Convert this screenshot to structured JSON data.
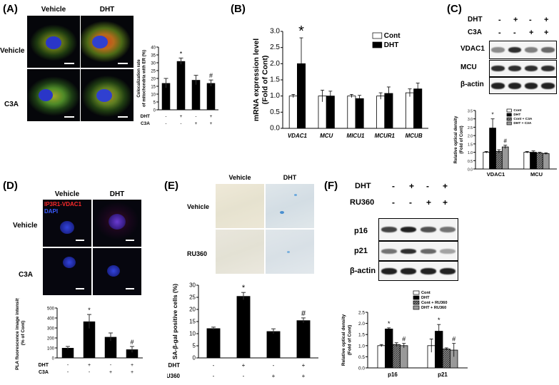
{
  "panels": {
    "A": {
      "label": "(A)",
      "col_headers": [
        "Vehicle",
        "DHT"
      ],
      "row_headers": [
        "Vehicle",
        "C3A"
      ],
      "chart_data": {
        "type": "bar",
        "ylabel": "Colocalization rate of mitochondria with ER (%)",
        "ylabel_lines": [
          "Colocalization rate",
          "of mitochondria with ER (%)"
        ],
        "ylim": [
          0,
          40
        ],
        "yticks": [
          "0",
          "5",
          "10",
          "15",
          "20",
          "25",
          "30",
          "35",
          "40"
        ],
        "conditions": {
          "DHT": [
            "-",
            "+",
            "-",
            "+"
          ],
          "C3A": [
            "-",
            "-",
            "+",
            "+"
          ]
        },
        "values": [
          17,
          31,
          19,
          17
        ],
        "errors": [
          3,
          2,
          3,
          2
        ],
        "colors": [
          "#000000",
          "#000000",
          "#000000",
          "#000000"
        ],
        "annotations": [
          "",
          "*",
          "",
          "#"
        ]
      }
    },
    "B": {
      "label": "(B)",
      "chart_data": {
        "type": "bar",
        "ylabel": "mRNA expression level (Fold of Cont)",
        "ylabel_lines": [
          "mRNA expression level",
          "(Fold of Cont)"
        ],
        "ylim": [
          0,
          3.0
        ],
        "yticks": [
          "0.0",
          "0.5",
          "1.0",
          "1.5",
          "2.0",
          "2.5",
          "3.0"
        ],
        "categories": [
          "VDAC1",
          "MCU",
          "MICU1",
          "MCUR1",
          "MCUB"
        ],
        "series": [
          {
            "name": "Cont",
            "color": "#ffffff",
            "values": [
              1.0,
              1.0,
              1.0,
              1.0,
              1.1
            ],
            "errors": [
              0.05,
              0.18,
              0.05,
              0.1,
              0.12
            ]
          },
          {
            "name": "DHT",
            "color": "#000000",
            "values": [
              2.0,
              1.0,
              0.92,
              1.08,
              1.22
            ],
            "errors": [
              0.8,
              0.15,
              0.1,
              0.2,
              0.18
            ]
          }
        ],
        "annotations": [
          {
            "category": "VDAC1",
            "text": "*"
          }
        ]
      }
    },
    "C": {
      "label": "(C)",
      "conditions": {
        "DHT": [
          "-",
          "+",
          "-",
          "+"
        ],
        "C3A": [
          "-",
          "-",
          "+",
          "+"
        ]
      },
      "blot_labels": [
        "VDAC1",
        "MCU",
        "β-actin"
      ],
      "chart_data": {
        "type": "bar",
        "ylabel": "Relative optical density (Fold of Cont)",
        "ylabel_lines": [
          "Relative optical density",
          "(Fold of Cont)"
        ],
        "ylim": [
          0,
          3.5
        ],
        "yticks": [
          "0.0",
          "0.5",
          "1.0",
          "1.5",
          "2.0",
          "2.5",
          "3.0",
          "3.5"
        ],
        "categories": [
          "VDAC1",
          "MCU"
        ],
        "series": [
          {
            "name": "Cont",
            "fill": "#ffffff",
            "values": [
              1.0,
              1.0
            ],
            "errors": [
              0.05,
              0.05
            ]
          },
          {
            "name": "DHT",
            "fill": "#000000",
            "values": [
              2.45,
              1.0
            ],
            "errors": [
              0.55,
              0.08
            ]
          },
          {
            "name": "Cont + C3A",
            "fill": "#666666",
            "values": [
              1.05,
              0.95
            ],
            "errors": [
              0.1,
              0.05
            ]
          },
          {
            "name": "DHT + C3A",
            "fill": "#999999",
            "values": [
              1.32,
              0.92
            ],
            "errors": [
              0.1,
              0.05
            ]
          }
        ],
        "annotations": [
          {
            "category": "VDAC1",
            "series": "DHT",
            "text": "*"
          },
          {
            "category": "VDAC1",
            "series": "DHT + C3A",
            "text": "#"
          }
        ]
      }
    },
    "D": {
      "label": "(D)",
      "col_headers": [
        "Vehicle",
        "DHT"
      ],
      "row_headers": [
        "Vehicle",
        "C3A"
      ],
      "stain_legend": [
        {
          "text": "IP3R1-VDAC1",
          "color": "#ff2a2a"
        },
        {
          "text": "DAPI",
          "color": "#3a5bff"
        }
      ],
      "chart_data": {
        "type": "bar",
        "ylabel": "PLA fluorescence image intensity (% of Cont)",
        "ylabel_lines": [
          "PLA fluorescence image intensity",
          "(% of Cont)"
        ],
        "ylim": [
          0,
          500
        ],
        "yticks": [
          "0",
          "100",
          "200",
          "300",
          "400",
          "500"
        ],
        "conditions": {
          "DHT": [
            "-",
            "+",
            "-",
            "+"
          ],
          "C3A": [
            "-",
            "-",
            "+",
            "+"
          ]
        },
        "values": [
          100,
          365,
          210,
          85
        ],
        "errors": [
          15,
          70,
          40,
          30
        ],
        "annotations": [
          "",
          "*",
          "",
          "#"
        ]
      }
    },
    "E": {
      "label": "(E)",
      "col_headers": [
        "Vehicle",
        "DHT"
      ],
      "row_headers": [
        "Vehicle",
        "RU360"
      ],
      "chart_data": {
        "type": "bar",
        "ylabel": "SA-β-gal positive cells (%)",
        "ylim": [
          0,
          30
        ],
        "yticks": [
          "0",
          "5",
          "10",
          "15",
          "20",
          "25",
          "30"
        ],
        "conditions": {
          "DHT": [
            "-",
            "+",
            "-",
            "+"
          ],
          "RU360": [
            "-",
            "-",
            "+",
            "+"
          ]
        },
        "values": [
          12.2,
          25.5,
          11.0,
          15.5
        ],
        "errors": [
          0.5,
          1.5,
          1.0,
          1.0
        ],
        "annotations": [
          "",
          "*",
          "",
          "#"
        ]
      }
    },
    "F": {
      "label": "(F)",
      "conditions": {
        "DHT": [
          "-",
          "+",
          "-",
          "+"
        ],
        "RU360": [
          "-",
          "-",
          "+",
          "+"
        ]
      },
      "blot_labels": [
        "p16",
        "p21",
        "β-actin"
      ],
      "chart_data": {
        "type": "bar",
        "ylabel": "Relative optical density (Fold of Cont)",
        "ylabel_lines": [
          "Relative optical density",
          "(Fold of Cont)"
        ],
        "ylim": [
          0,
          2.5
        ],
        "yticks": [
          "0.0",
          "0.5",
          "1.0",
          "1.5",
          "2.0",
          "2.5"
        ],
        "categories": [
          "p16",
          "p21"
        ],
        "series": [
          {
            "name": "Cont",
            "fill": "#ffffff",
            "values": [
              1.0,
              1.0
            ],
            "errors": [
              0.05,
              0.3
            ]
          },
          {
            "name": "DHT",
            "fill": "#000000",
            "values": [
              1.75,
              1.65
            ],
            "errors": [
              0.05,
              0.3
            ]
          },
          {
            "name": "Cont + RU360",
            "fill": "#666666",
            "values": [
              1.05,
              0.85
            ],
            "errors": [
              0.08,
              0.05
            ]
          },
          {
            "name": "DHT + RU360",
            "fill": "#999999",
            "values": [
              1.0,
              0.8
            ],
            "errors": [
              0.1,
              0.3
            ]
          }
        ],
        "annotations": [
          {
            "category": "p16",
            "series": "DHT",
            "text": "*"
          },
          {
            "category": "p16",
            "series": "DHT + RU360",
            "text": "#"
          },
          {
            "category": "p21",
            "series": "DHT",
            "text": "*"
          },
          {
            "category": "p21",
            "series": "DHT + RU360",
            "text": "#"
          }
        ]
      }
    }
  }
}
